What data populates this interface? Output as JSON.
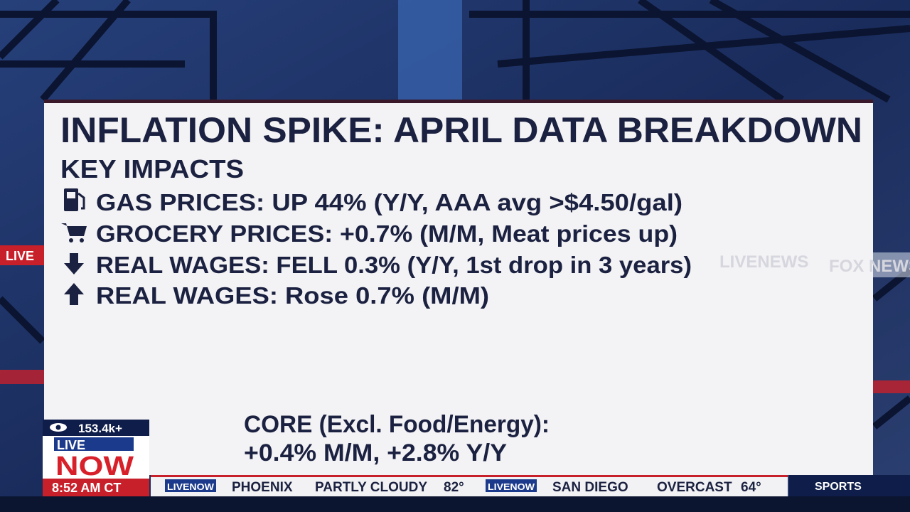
{
  "background": {
    "signs": [
      "LIVE",
      "LIVENEWS",
      "FOX NEWS"
    ]
  },
  "panel": {
    "title": "INFLATION SPIKE: APRIL DATA BREAKDOWN",
    "subtitle": "KEY IMPACTS",
    "items": [
      "GAS PRICES: UP 44% (Y/Y, AAA avg >$4.50/gal)",
      "GROCERY PRICES: +0.7% (M/M, Meat prices up)",
      "REAL WAGES: FELL 0.3% (Y/Y, 1st drop  in 3 years)",
      "REAL WAGES: Rose 0.7% (M/M)"
    ],
    "core": [
      "CORE (Excl. Food/Energy):",
      "+0.4% M/M, +2.8% Y/Y"
    ]
  },
  "badge": {
    "viewers": "153.4k+",
    "live": "LIVE",
    "now": "NOW",
    "time": "8:52 AM CT"
  },
  "ticker": {
    "entries": [
      {
        "logo": "LIVENOW",
        "city": "PHOENIX",
        "condition": "PARTLY CLOUDY",
        "temp": "82°"
      },
      {
        "logo": "LIVENOW",
        "city": "SAN DIEGO",
        "condition": "OVERCAST",
        "temp": "64°"
      }
    ],
    "section": "SPORTS"
  }
}
